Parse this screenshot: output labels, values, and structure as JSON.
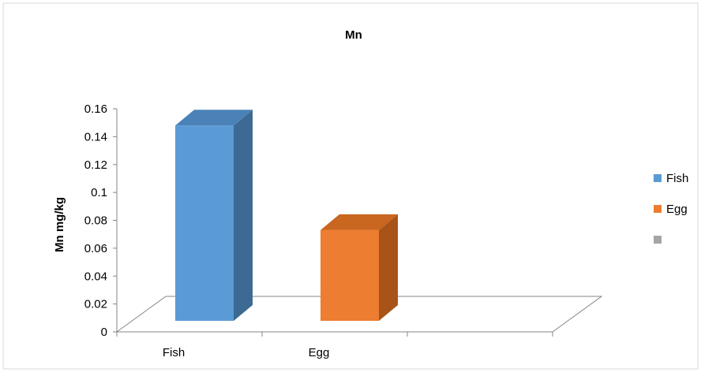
{
  "chart_data": {
    "type": "bar",
    "title": "Mn",
    "ylabel": "Mn mg/kg",
    "xlabel": "",
    "categories": [
      "Fish",
      "Egg",
      ""
    ],
    "values": [
      0.148,
      0.073,
      null
    ],
    "ylim": [
      0,
      0.16
    ],
    "yticks": [
      "0.16",
      "0.14",
      "0.12",
      "0.1",
      "0.08",
      "0.06",
      "0.04",
      "0.02",
      "0"
    ],
    "legend_position": "right",
    "legend": [
      {
        "name": "Fish",
        "color": "#5b9bd5"
      },
      {
        "name": "Egg",
        "color": "#ed7d31"
      },
      {
        "name": "",
        "color": "#a5a5a5"
      }
    ],
    "grid": false,
    "style": "3d-column",
    "colors": {
      "Fish": {
        "front": "#5b9bd5",
        "side": "#3c6a93",
        "top": "#4a82b8"
      },
      "Egg": {
        "front": "#ed7d31",
        "side": "#a85418",
        "top": "#c9661f"
      }
    }
  }
}
